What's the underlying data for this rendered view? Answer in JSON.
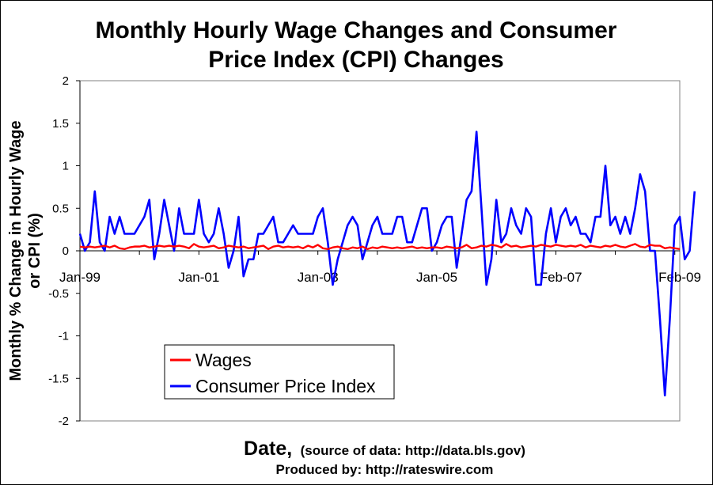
{
  "chart_data": {
    "type": "line",
    "title_lines": [
      "Monthly Hourly Wage Changes and Consumer",
      "Price Index (CPI) Changes"
    ],
    "ylabel_lines": [
      "Monthly % Change in Hourly Wage",
      "or CPI (%)"
    ],
    "xlabel_main": "Date,",
    "xlabel_source": "(source of data: http://data.bls.gov)",
    "credit": "Produced by: http://rateswire.com",
    "ylim": [
      -2,
      2
    ],
    "y_ticks": [
      "2",
      "1.5",
      "1",
      "0.5",
      "0",
      "-0.5",
      "-1",
      "-1.5",
      "-2"
    ],
    "x_tick_labels": [
      {
        "label": "Jan-99",
        "index": 0
      },
      {
        "label": "Jan-01",
        "index": 24
      },
      {
        "label": "Jan-03",
        "index": 48
      },
      {
        "label": "Jan-05",
        "index": 72
      },
      {
        "label": "Feb-07",
        "index": 97
      },
      {
        "label": "Feb-09",
        "index": 121
      }
    ],
    "grid": false,
    "legend_position": "lower-left",
    "series": [
      {
        "name": "Wages",
        "color": "#ff0000",
        "values": [
          0.05,
          0.04,
          0.05,
          0.04,
          0.05,
          0.06,
          0.04,
          0.06,
          0.03,
          0.02,
          0.04,
          0.05,
          0.05,
          0.06,
          0.04,
          0.05,
          0.06,
          0.05,
          0.06,
          0.05,
          0.06,
          0.05,
          0.03,
          0.08,
          0.05,
          0.04,
          0.05,
          0.06,
          0.03,
          0.04,
          0.06,
          0.05,
          0.04,
          0.05,
          0.03,
          0.04,
          0.05,
          0.06,
          0.02,
          0.05,
          0.06,
          0.04,
          0.05,
          0.04,
          0.05,
          0.03,
          0.06,
          0.04,
          0.07,
          0.03,
          0.02,
          0.04,
          0.05,
          0.03,
          0.02,
          0.04,
          0.03,
          0.05,
          0.02,
          0.04,
          0.03,
          0.05,
          0.04,
          0.03,
          0.04,
          0.03,
          0.04,
          0.05,
          0.03,
          0.04,
          0.03,
          0.04,
          0.04,
          0.03,
          0.05,
          0.04,
          0.03,
          0.04,
          0.07,
          0.03,
          0.04,
          0.06,
          0.05,
          0.07,
          0.06,
          0.04,
          0.08,
          0.05,
          0.06,
          0.04,
          0.05,
          0.06,
          0.05,
          0.07,
          0.06,
          0.05,
          0.07,
          0.06,
          0.05,
          0.06,
          0.05,
          0.07,
          0.04,
          0.06,
          0.05,
          0.04,
          0.06,
          0.05,
          0.07,
          0.05,
          0.04,
          0.06,
          0.08,
          0.05,
          0.04,
          0.07,
          0.06,
          0.06,
          0.03,
          0.04,
          0.03,
          0.02
        ]
      },
      {
        "name": "Consumer Price Index",
        "color": "#0000ff",
        "values": [
          0.2,
          0.0,
          0.1,
          0.7,
          0.1,
          0.0,
          0.4,
          0.2,
          0.4,
          0.2,
          0.2,
          0.2,
          0.3,
          0.4,
          0.6,
          -0.1,
          0.2,
          0.6,
          0.3,
          0.0,
          0.5,
          0.2,
          0.2,
          0.2,
          0.6,
          0.2,
          0.1,
          0.2,
          0.5,
          0.2,
          -0.2,
          0.0,
          0.4,
          -0.3,
          -0.1,
          -0.1,
          0.2,
          0.2,
          0.3,
          0.4,
          0.1,
          0.1,
          0.2,
          0.3,
          0.2,
          0.2,
          0.2,
          0.2,
          0.4,
          0.5,
          0.1,
          -0.4,
          -0.1,
          0.1,
          0.3,
          0.4,
          0.3,
          -0.1,
          0.1,
          0.3,
          0.4,
          0.2,
          0.2,
          0.2,
          0.4,
          0.4,
          0.1,
          0.1,
          0.3,
          0.5,
          0.5,
          0.0,
          0.1,
          0.3,
          0.4,
          0.4,
          -0.2,
          0.2,
          0.6,
          0.7,
          1.4,
          0.5,
          -0.4,
          -0.1,
          0.6,
          0.1,
          0.2,
          0.5,
          0.3,
          0.2,
          0.5,
          0.4,
          -0.4,
          -0.4,
          0.2,
          0.5,
          0.1,
          0.4,
          0.5,
          0.3,
          0.4,
          0.2,
          0.2,
          0.1,
          0.4,
          0.4,
          1.0,
          0.3,
          0.4,
          0.2,
          0.4,
          0.2,
          0.5,
          0.9,
          0.7,
          0.0,
          0.0,
          -0.8,
          -1.7,
          -0.8,
          0.3,
          0.4,
          -0.1,
          0.0,
          0.7
        ]
      }
    ]
  }
}
